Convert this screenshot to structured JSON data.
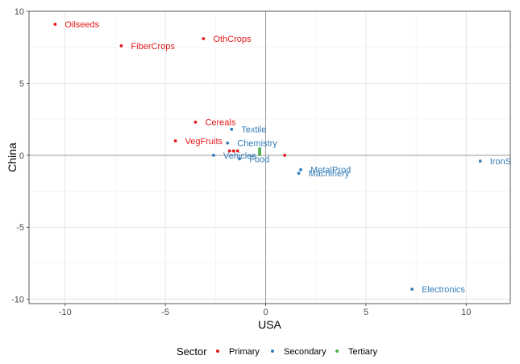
{
  "chart_data": {
    "type": "scatter",
    "xlabel": "USA",
    "ylabel": "China",
    "xlim": [
      -11.8,
      12.2
    ],
    "ylim": [
      -10.3,
      10.0
    ],
    "x_ticks": [
      -10,
      -5,
      0,
      5,
      10
    ],
    "y_ticks": [
      -10,
      -5,
      0,
      5,
      10
    ],
    "x_tick_labels": [
      "-10",
      "-5",
      "0",
      "5",
      "10"
    ],
    "y_tick_labels": [
      "-10",
      "-5",
      "0",
      "5",
      "10"
    ],
    "grid": true,
    "zero_lines": true,
    "legend": {
      "title": "Sector",
      "placement": "bottom"
    },
    "series": [
      {
        "name": "Primary",
        "color": "#e41a1c",
        "points": [
          {
            "label": "Oilseeds",
            "x": -10.5,
            "y": 9.1
          },
          {
            "label": "FiberCrops",
            "x": -7.2,
            "y": 7.6
          },
          {
            "label": "OthCrops",
            "x": -3.1,
            "y": 8.1
          },
          {
            "label": "Cereals",
            "x": -3.5,
            "y": 2.3
          },
          {
            "label": "VegFruits",
            "x": -4.5,
            "y": 1.0
          },
          {
            "label": "",
            "x": -1.8,
            "y": 0.3
          },
          {
            "label": "",
            "x": -1.6,
            "y": 0.3
          },
          {
            "label": "",
            "x": -1.4,
            "y": 0.3
          },
          {
            "label": "",
            "x": 0.95,
            "y": 0.0
          }
        ]
      },
      {
        "name": "Secondary",
        "color": "#377eb8",
        "points": [
          {
            "label": "Textile",
            "x": -1.7,
            "y": 1.8
          },
          {
            "label": "Chemistry",
            "x": -1.9,
            "y": 0.85
          },
          {
            "label": "Vehicles",
            "x": -2.6,
            "y": 0.0
          },
          {
            "label": "Food",
            "x": -1.3,
            "y": -0.25
          },
          {
            "label": "MetalProd",
            "x": 1.75,
            "y": -1.0
          },
          {
            "label": "Machinery",
            "x": 1.65,
            "y": -1.25
          },
          {
            "label": "IronS",
            "x": 10.7,
            "y": -0.4
          },
          {
            "label": "Electronics",
            "x": 7.3,
            "y": -9.3
          }
        ]
      },
      {
        "name": "Tertiary",
        "color": "#4daf4a",
        "points": [
          {
            "label": "",
            "x": -0.3,
            "y": 0.45
          },
          {
            "label": "",
            "x": -0.3,
            "y": 0.35
          },
          {
            "label": "",
            "x": -0.3,
            "y": 0.25
          },
          {
            "label": "",
            "x": -0.3,
            "y": 0.15
          },
          {
            "label": "",
            "x": -0.3,
            "y": 0.05
          }
        ]
      }
    ]
  }
}
